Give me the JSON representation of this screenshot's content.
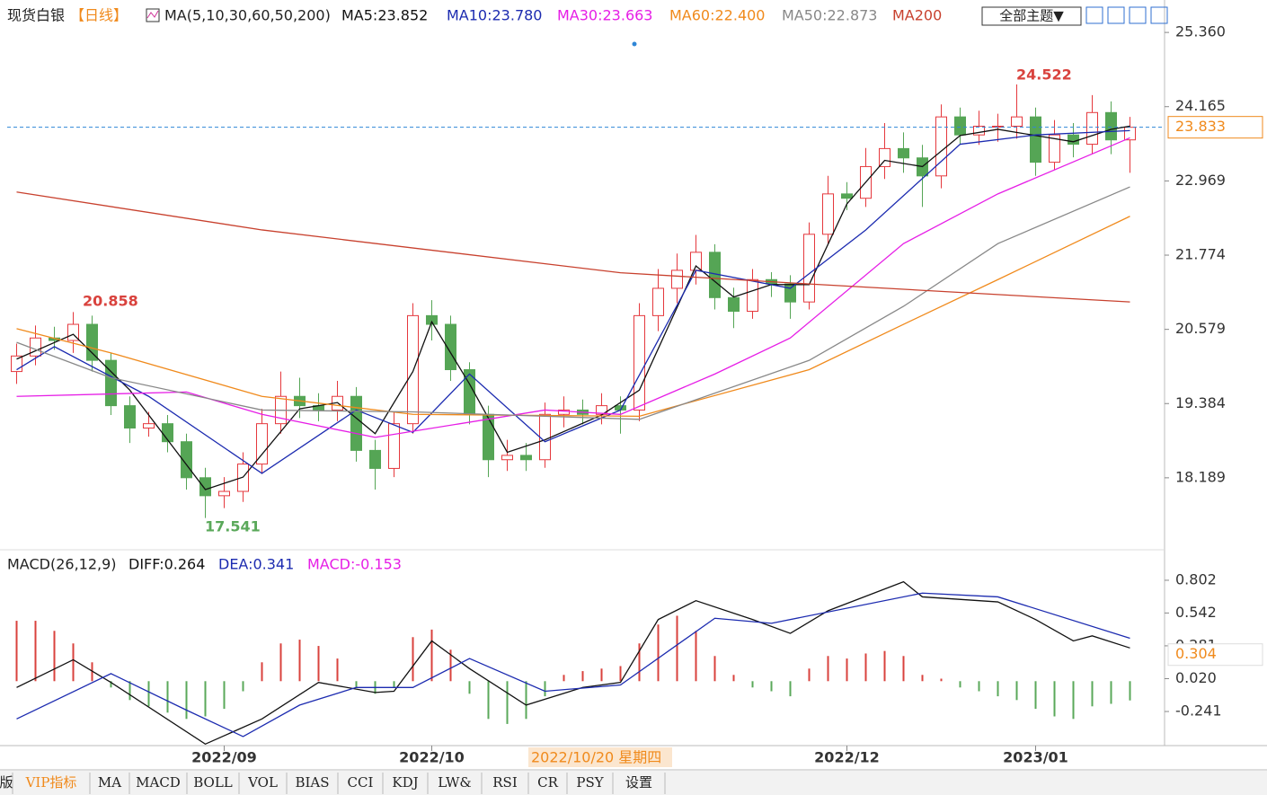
{
  "chart_data": [
    {
      "type": "candlestick",
      "title": "现货白银",
      "period": "【日线】",
      "indicator": "MA(5,10,30,60,50,200)",
      "categories": [
        null,
        null,
        null,
        null,
        null,
        null,
        null,
        null,
        null,
        null,
        null,
        "2022/09",
        null,
        null,
        null,
        null,
        null,
        null,
        null,
        null,
        null,
        null,
        "2022/10",
        null,
        null,
        null,
        null,
        null,
        null,
        null,
        null,
        null,
        null,
        null,
        null,
        null,
        null,
        null,
        null,
        null,
        null,
        null,
        null,
        null,
        "2022/12",
        null,
        null,
        null,
        null,
        null,
        null,
        null,
        null,
        null,
        "2023/01",
        null,
        null,
        null,
        null,
        null
      ],
      "open": [
        19.9,
        20.15,
        20.44,
        20.4,
        20.66,
        20.08,
        19.35,
        18.99,
        19.06,
        18.77,
        18.19,
        17.9,
        17.97,
        18.41,
        19.06,
        19.5,
        19.35,
        19.28,
        19.5,
        18.63,
        18.34,
        19.06,
        20.8,
        20.66,
        19.93,
        19.21,
        18.48,
        18.55,
        18.48,
        19.21,
        19.28,
        19.21,
        19.35,
        19.28,
        20.8,
        21.24,
        21.53,
        21.82,
        21.09,
        20.87,
        21.38,
        21.31,
        21.02,
        22.11,
        22.76,
        22.69,
        23.2,
        23.49,
        23.34,
        23.05,
        24.0,
        23.71,
        23.85,
        23.85,
        24.0,
        23.27,
        23.71,
        23.56,
        24.07,
        23.63
      ],
      "high": [
        20.35,
        20.64,
        20.62,
        20.858,
        20.8,
        20.2,
        19.5,
        19.25,
        19.2,
        18.9,
        18.35,
        18.2,
        18.6,
        19.3,
        19.9,
        19.8,
        19.55,
        19.75,
        19.65,
        18.8,
        19.25,
        21.0,
        21.05,
        20.8,
        20.05,
        19.35,
        18.8,
        18.75,
        19.4,
        19.5,
        19.45,
        19.55,
        19.5,
        21.0,
        21.55,
        21.8,
        22.1,
        21.95,
        21.25,
        21.55,
        21.5,
        21.45,
        22.3,
        23.05,
        22.95,
        23.5,
        23.9,
        23.75,
        23.55,
        24.2,
        24.15,
        24.1,
        24.05,
        24.522,
        24.15,
        23.95,
        23.9,
        24.35,
        24.25,
        24.0
      ],
      "low": [
        19.7,
        20.0,
        20.25,
        20.2,
        19.9,
        19.2,
        18.75,
        18.85,
        18.6,
        18.0,
        17.541,
        17.7,
        17.8,
        18.25,
        18.9,
        19.15,
        19.1,
        19.1,
        18.45,
        18.0,
        18.2,
        18.9,
        20.4,
        19.75,
        19.05,
        18.2,
        18.3,
        18.3,
        18.35,
        19.0,
        19.05,
        19.05,
        18.9,
        19.1,
        20.55,
        21.0,
        21.3,
        20.9,
        20.6,
        20.75,
        21.1,
        20.75,
        20.9,
        21.95,
        22.5,
        22.55,
        23.0,
        23.1,
        22.55,
        22.85,
        23.55,
        23.55,
        23.6,
        23.65,
        23.05,
        23.15,
        23.35,
        23.4,
        23.4,
        23.1
      ],
      "close": [
        20.15,
        20.44,
        20.4,
        20.66,
        20.08,
        19.35,
        18.99,
        19.06,
        18.77,
        18.19,
        17.9,
        17.97,
        18.41,
        19.06,
        19.5,
        19.35,
        19.28,
        19.5,
        18.63,
        18.34,
        19.06,
        20.8,
        20.66,
        19.93,
        19.21,
        18.48,
        18.55,
        18.48,
        19.21,
        19.28,
        19.21,
        19.35,
        19.28,
        20.8,
        21.24,
        21.53,
        21.82,
        21.09,
        20.87,
        21.38,
        21.31,
        21.02,
        22.11,
        22.76,
        22.69,
        23.2,
        23.49,
        23.34,
        23.05,
        24.0,
        23.71,
        23.85,
        23.85,
        24.0,
        23.27,
        23.71,
        23.56,
        24.07,
        23.63,
        23.833
      ],
      "up_color": "#e5383d",
      "down_color": "#55a555",
      "price_line_color": "#2f86d6",
      "series": [
        {
          "name": "MA5",
          "label": "MA5:23.852",
          "color": "#111111",
          "x": [
            0,
            3,
            6,
            10,
            12,
            15,
            17,
            19,
            21,
            22,
            24,
            26,
            28,
            31,
            33,
            36,
            38,
            40,
            42,
            44,
            46,
            48,
            50,
            52,
            54,
            56,
            58,
            59
          ],
          "values": [
            20.1,
            20.5,
            19.6,
            18.0,
            18.2,
            19.3,
            19.4,
            18.9,
            19.9,
            20.7,
            19.7,
            18.6,
            18.8,
            19.2,
            19.6,
            21.6,
            21.1,
            21.3,
            21.3,
            22.6,
            23.3,
            23.2,
            23.7,
            23.8,
            23.7,
            23.6,
            23.8,
            23.852
          ]
        },
        {
          "name": "MA10",
          "label": "MA10:23.780",
          "color": "#1c2bb0",
          "x": [
            0,
            2,
            7,
            13,
            18,
            21,
            24,
            28,
            32,
            36,
            41,
            45,
            50,
            54,
            59
          ],
          "values": [
            19.93,
            20.3,
            19.5,
            18.26,
            19.28,
            18.92,
            19.86,
            18.77,
            19.28,
            21.53,
            21.24,
            22.18,
            23.56,
            23.71,
            23.78
          ]
        },
        {
          "name": "MA30",
          "label": "MA30:23.663",
          "color": "#e61ee6",
          "x": [
            0,
            9,
            13,
            19,
            28,
            32,
            37,
            41,
            47,
            52,
            59
          ],
          "values": [
            19.5,
            19.57,
            19.21,
            18.84,
            19.28,
            19.21,
            19.86,
            20.44,
            21.96,
            22.76,
            23.663
          ]
        },
        {
          "name": "MA60",
          "label": "MA60:22.400",
          "color": "#f08a1c",
          "x": [
            0,
            5,
            13,
            21,
            33,
            42,
            47,
            52,
            59
          ],
          "values": [
            20.59,
            20.2,
            19.5,
            19.21,
            19.18,
            19.93,
            20.66,
            21.38,
            22.4
          ]
        },
        {
          "name": "MA50",
          "label": "MA50:22.873",
          "color": "#888888",
          "x": [
            0,
            5,
            13,
            21,
            33,
            42,
            47,
            52,
            59
          ],
          "values": [
            20.37,
            19.8,
            19.28,
            19.25,
            19.13,
            20.08,
            20.95,
            21.96,
            22.873
          ]
        },
        {
          "name": "MA200",
          "label": "MA200",
          "color": "#c8412e",
          "x": [
            0,
            13,
            32,
            42,
            59
          ],
          "values": [
            22.79,
            22.18,
            21.49,
            21.31,
            21.02
          ]
        }
      ],
      "ylim": [
        17.03,
        25.81
      ],
      "yticks": [
        {
          "value": 25.36,
          "label": "25.360"
        },
        24.165,
        22.969,
        21.774,
        20.579,
        19.384,
        18.189
      ]
    },
    {
      "type": "macd",
      "title": "MACD(26,12,9)",
      "series": [
        {
          "name": "DIFF",
          "label": "DIFF:0.264",
          "color": "#111111",
          "x": [
            0,
            3,
            5,
            10,
            13,
            16,
            19,
            20,
            22,
            24,
            27,
            30,
            32,
            34,
            36,
            39,
            41,
            43,
            47,
            48,
            52,
            54,
            56,
            57,
            59
          ],
          "values": [
            -0.05,
            0.17,
            -0.01,
            -0.5,
            -0.3,
            -0.01,
            -0.09,
            -0.08,
            0.32,
            0.1,
            -0.19,
            -0.05,
            -0.01,
            0.49,
            0.64,
            0.49,
            0.38,
            0.56,
            0.79,
            0.67,
            0.63,
            0.49,
            0.32,
            0.36,
            0.264
          ]
        },
        {
          "name": "DEA",
          "label": "DEA:0.341",
          "color": "#1c2bb0",
          "x": [
            0,
            5,
            9,
            12,
            15,
            18,
            21,
            24,
            28,
            32,
            37,
            40,
            48,
            52,
            59
          ],
          "values": [
            -0.3,
            0.06,
            -0.23,
            -0.44,
            -0.19,
            -0.05,
            -0.05,
            0.18,
            -0.08,
            -0.03,
            0.5,
            0.46,
            0.7,
            0.67,
            0.341
          ]
        },
        {
          "name": "MACD",
          "label": "MACD:-0.153",
          "color": "#e61ee6",
          "pos_color": "#d9423d",
          "neg_color": "#5aa85a",
          "values": [
            0.48,
            0.48,
            0.4,
            0.3,
            0.15,
            -0.05,
            -0.15,
            -0.2,
            -0.25,
            -0.3,
            -0.28,
            -0.22,
            -0.08,
            0.15,
            0.3,
            0.33,
            0.28,
            0.18,
            -0.05,
            -0.1,
            -0.05,
            0.35,
            0.41,
            0.25,
            -0.1,
            -0.3,
            -0.34,
            -0.3,
            -0.12,
            0.05,
            0.08,
            0.1,
            0.12,
            0.3,
            0.45,
            0.52,
            0.4,
            0.2,
            0.05,
            -0.05,
            -0.08,
            -0.12,
            0.1,
            0.2,
            0.18,
            0.22,
            0.24,
            0.2,
            0.05,
            0.02,
            -0.05,
            -0.08,
            -0.12,
            -0.15,
            -0.22,
            -0.28,
            -0.3,
            -0.2,
            -0.18,
            -0.153
          ]
        }
      ],
      "cursor_value": 0.304,
      "ylim": [
        -0.512,
        1.023
      ],
      "yticks": [
        0.802,
        0.542,
        0.281,
        {
          "value": 0.02,
          "label": "0.020"
        },
        -0.241
      ]
    }
  ],
  "toolbar": {
    "theme_button": "全部主题▼"
  },
  "cursor": {
    "date": "2022/10/20 星期四"
  },
  "tabs": [
    "版",
    "VIP指标",
    "MA",
    "MACD",
    "BOLL",
    "VOL",
    "BIAS",
    "CCI",
    "KDJ",
    "LW&",
    "RSI",
    "CR",
    "PSY",
    "设置"
  ]
}
